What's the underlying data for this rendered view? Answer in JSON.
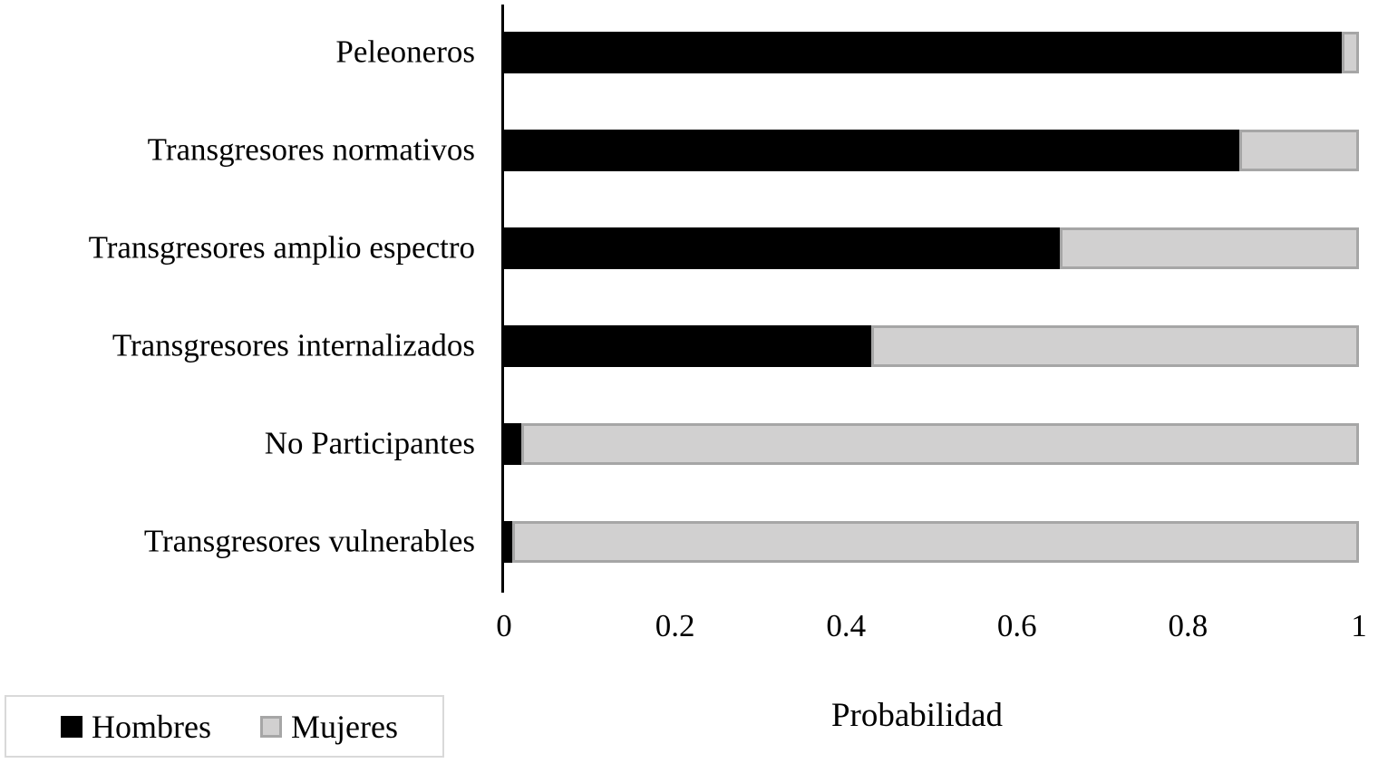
{
  "chart_data": {
    "type": "bar",
    "orientation": "horizontal",
    "stacked": true,
    "title": "",
    "categories": [
      "Peleoneros",
      "Transgresores normativos",
      "Transgresores amplio espectro",
      "Transgresores internalizados",
      "No Participantes",
      "Transgresores vulnerables"
    ],
    "series": [
      {
        "name": "Hombres",
        "color": "#000000",
        "border_color": "",
        "values": [
          0.98,
          0.86,
          0.65,
          0.43,
          0.02,
          0.01
        ]
      },
      {
        "name": "Mujeres",
        "color": "#d1d0d0",
        "border_color": "#a6a6a6",
        "values": [
          0.02,
          0.14,
          0.35,
          0.57,
          0.98,
          0.99
        ]
      }
    ],
    "xlabel": "Probabilidad",
    "ylabel": "",
    "xlim": [
      0,
      1
    ],
    "x_ticks": [
      {
        "label": "0",
        "value": 0
      },
      {
        "label": "0.2",
        "value": 0.2
      },
      {
        "label": "0.4",
        "value": 0.4
      },
      {
        "label": "0.6",
        "value": 0.6
      },
      {
        "label": "0.8",
        "value": 0.8
      },
      {
        "label": "1",
        "value": 1
      }
    ],
    "grid": false,
    "legend_position": "bottom-left"
  },
  "colors": {
    "background": "#ffffff",
    "axis": "#000000",
    "hombres": "#000000",
    "mujeres_fill": "#d1d0d0",
    "mujeres_border": "#a6a6a6",
    "legend_box_border": "#d9d9d9"
  }
}
